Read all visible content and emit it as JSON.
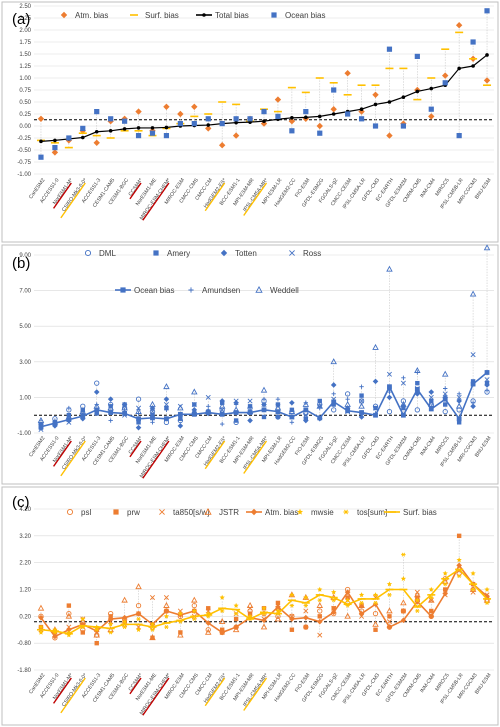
{
  "models": [
    "CanESM2",
    "ACCESS1-0",
    "NorESM1-M*",
    "CSIRO-Mk3-6-0*",
    "ACCESS1-3",
    "CESM1-CAM5",
    "CESM1-BGC",
    "CCSM4*",
    "NorESM1-ME",
    "MIROC-ESM-CHEM*",
    "MIROC-ESM",
    "CMCC-CMS",
    "CMCC-CM",
    "HadGEM2-ES*",
    "BCC-ESM1-1",
    "MPI-ESM-MR",
    "IPSL-CM5A-MR*",
    "MPI-ESM-LR",
    "HadGEM2-CC",
    "FIO-ESM",
    "GFDL-ESM2G",
    "FGOALS-g2",
    "CMCC-CESM",
    "IPSL-CM5A-LR",
    "GFDL-CM3",
    "EC-EARTH",
    "GFDL-ESM2M",
    "CNRM-CM5",
    "INM-CM4",
    "MIROC5",
    "IPSL-CM5B-LR",
    "MRI-CGCM3",
    "BNU-ESM"
  ],
  "highlight": {
    "red": [
      2,
      7,
      9
    ],
    "yellow": [
      3,
      13,
      16
    ],
    "red_color": "#c00000",
    "yellow_color": "#ffc000"
  },
  "chart_data": [
    {
      "panel": "(a)",
      "type": "line",
      "ylim": [
        -1.0,
        2.5
      ],
      "yticks": [
        -1.0,
        -0.75,
        -0.5,
        -0.25,
        0.0,
        0.25,
        0.5,
        0.75,
        1.0,
        1.25,
        1.5,
        1.75,
        2.0,
        2.25,
        2.5
      ],
      "ytick_labels": [
        "-1.00",
        "-0.75",
        "-0.50",
        "-0.25",
        "0.00",
        "0.25",
        "0.50",
        "0.75",
        "1.00",
        "1.25",
        "1.50",
        "1.75",
        "2.00",
        "2.25",
        "2.50"
      ],
      "ref_line": 0.13,
      "legend": [
        "Atm. bias",
        "Surf. bias",
        "Total bias",
        "Ocean bias"
      ],
      "series": [
        {
          "name": "Atm. bias",
          "marker": "diamond",
          "color": "#ed7d31",
          "values": [
            0.15,
            -0.55,
            -0.3,
            -0.1,
            -0.35,
            0.1,
            0.15,
            0.3,
            -0.1,
            0.4,
            0.25,
            0.4,
            -0.05,
            -0.4,
            -0.2,
            0.15,
            0.05,
            0.55,
            0.1,
            0.15,
            0.0,
            0.35,
            1.1,
            0.3,
            0.65,
            -0.2,
            0.05,
            0.75,
            0.2,
            1.05,
            2.1,
            1.4,
            0.95
          ]
        },
        {
          "name": "Surf. bias",
          "marker": "dash",
          "color": "#ffc000",
          "values": [
            -0.3,
            -0.35,
            -0.45,
            -0.15,
            -0.2,
            -0.25,
            -0.1,
            -0.1,
            -0.2,
            -0.05,
            0.05,
            0.2,
            0.25,
            0.5,
            0.45,
            0.1,
            0.35,
            0.3,
            0.8,
            0.7,
            1.0,
            0.9,
            0.65,
            0.85,
            0.85,
            1.2,
            1.2,
            0.55,
            1.0,
            1.6,
            1.95,
            1.4,
            0.85
          ]
        },
        {
          "name": "Total bias",
          "marker": "dot",
          "color": "#000000",
          "values": [
            -0.32,
            -0.3,
            -0.27,
            -0.24,
            -0.12,
            -0.1,
            -0.06,
            -0.04,
            -0.04,
            -0.03,
            0.0,
            0.01,
            0.02,
            0.05,
            0.07,
            0.08,
            0.1,
            0.14,
            0.17,
            0.18,
            0.2,
            0.25,
            0.3,
            0.35,
            0.45,
            0.5,
            0.6,
            0.72,
            0.78,
            0.85,
            1.2,
            1.25,
            1.48
          ]
        },
        {
          "name": "Ocean bias",
          "marker": "square",
          "color": "#4472c4",
          "values": [
            -0.65,
            -0.45,
            -0.25,
            -0.05,
            0.3,
            0.15,
            0.1,
            -0.2,
            -0.15,
            -0.2,
            0.05,
            0.05,
            0.15,
            0.05,
            0.15,
            0.15,
            0.3,
            0.2,
            -0.1,
            0.3,
            -0.15,
            0.75,
            0.25,
            0.15,
            0.0,
            1.6,
            0.0,
            1.45,
            0.35,
            0.9,
            -0.2,
            1.75,
            2.4
          ]
        }
      ]
    },
    {
      "panel": "(b)",
      "type": "line",
      "ylim": [
        -1.0,
        9.0
      ],
      "yticks": [
        -1.0,
        1.0,
        3.0,
        5.0,
        7.0,
        9.0
      ],
      "ytick_labels": [
        "-1.00",
        "1.00",
        "3.00",
        "5.00",
        "7.00",
        "9.00"
      ],
      "ref_line": 0.0,
      "legend": [
        "DML",
        "Amery",
        "Totten",
        "Ross",
        "Ocean bias",
        "Amundsen",
        "Weddell"
      ],
      "series": [
        {
          "name": "DML",
          "marker": "circle",
          "color": "#4472c4",
          "values": [
            -0.4,
            -0.2,
            0.3,
            0.5,
            1.8,
            0.6,
            0.4,
            0.9,
            0.2,
            -0.4,
            -0.3,
            0.1,
            0.2,
            0.3,
            -0.4,
            0.4,
            0.8,
            -0.1,
            0.2,
            0.1,
            0.6,
            0.3,
            1.2,
            0.8,
            0.5,
            0.2,
            0.8,
            0.3,
            0.6,
            0.2,
            0.3,
            0.8,
            1.3
          ]
        },
        {
          "name": "Amery",
          "marker": "square",
          "color": "#4472c4",
          "values": [
            -0.7,
            -0.5,
            0.0,
            0.3,
            0.1,
            0.5,
            0.6,
            -0.4,
            0.0,
            0.4,
            -0.2,
            0.6,
            0.2,
            0.7,
            -0.3,
            0.5,
            -0.1,
            0.6,
            0.3,
            -0.2,
            0.8,
            0.6,
            0.3,
            1.1,
            0.4,
            1.5,
            0.4,
            1.8,
            0.8,
            0.6,
            -0.4,
            1.9,
            1.8
          ]
        },
        {
          "name": "Totten",
          "marker": "diamond",
          "color": "#4472c4",
          "values": [
            -0.5,
            -0.6,
            -0.3,
            -0.2,
            1.3,
            0.9,
            0.6,
            -0.7,
            0.4,
            0.9,
            -0.6,
            0.3,
            0.1,
            0.8,
            0.7,
            -0.3,
            0.6,
            -0.1,
            0.7,
            -0.3,
            -0.2,
            1.7,
            0.4,
            -0.1,
            1.9,
            1.0,
            0.5,
            1.2,
            1.3,
            1.0,
            0.8,
            0.5,
            1.7
          ]
        },
        {
          "name": "Ross",
          "marker": "cross",
          "color": "#4472c4",
          "values": [
            -0.8,
            -0.5,
            -0.4,
            0.1,
            0.2,
            0.2,
            0.0,
            0.4,
            0.2,
            0.6,
            0.5,
            0.6,
            1.0,
            0.3,
            0.8,
            0.8,
            0.6,
            0.5,
            -0.1,
            0.0,
            0.5,
            0.9,
            0.2,
            0.8,
            0.4,
            2.3,
            1.8,
            1.5,
            1.0,
            1.2,
            1.0,
            3.4,
            2.0
          ]
        },
        {
          "name": "Ocean bias",
          "marker": "square",
          "color": "#4472c4",
          "values": [
            -0.65,
            -0.45,
            -0.25,
            -0.05,
            0.3,
            0.15,
            0.1,
            -0.2,
            -0.15,
            -0.2,
            0.05,
            0.05,
            0.15,
            0.05,
            0.15,
            0.15,
            0.3,
            0.2,
            -0.1,
            0.3,
            -0.15,
            0.75,
            0.25,
            0.15,
            0.0,
            1.6,
            0.0,
            1.45,
            0.35,
            0.9,
            -0.2,
            1.75,
            2.4
          ]
        },
        {
          "name": "Amundsen",
          "marker": "plus",
          "color": "#4472c4",
          "values": [
            -0.6,
            -0.3,
            0.4,
            -0.1,
            0.6,
            -0.3,
            0.3,
            0.1,
            -0.4,
            0.3,
            0.0,
            0.2,
            0.5,
            -0.5,
            0.6,
            0.4,
            0.9,
            0.9,
            -0.4,
            0.7,
            0.4,
            1.2,
            0.9,
            1.6,
            0.1,
            1.3,
            2.1,
            2.4,
            0.5,
            1.5,
            1.2,
            0.7,
            1.4
          ]
        },
        {
          "name": "Weddell",
          "marker": "triangle",
          "color": "#4472c4",
          "values": [
            -0.3,
            -0.4,
            -0.1,
            0.2,
            0.5,
            0.4,
            0.4,
            0.2,
            0.6,
            1.6,
            0.4,
            1.3,
            0.2,
            0.5,
            0.3,
            0.2,
            1.4,
            0.4,
            0.2,
            0.6,
            0.5,
            3.0,
            0.6,
            0.5,
            3.8,
            8.2,
            0.6,
            2.5,
            0.6,
            2.3,
            0.5,
            6.8,
            9.4
          ]
        }
      ]
    },
    {
      "panel": "(c)",
      "type": "line",
      "ylim": [
        -1.8,
        4.2
      ],
      "yticks": [
        -1.8,
        -0.8,
        0.2,
        1.2,
        2.2,
        3.2,
        4.2
      ],
      "ytick_labels": [
        "-1.80",
        "-0.80",
        "0.20",
        "1.20",
        "2.20",
        "3.20",
        "4.20"
      ],
      "ref_line": 0.0,
      "legend": [
        "psl",
        "prw",
        "ta850[s/w]",
        "JSTR",
        "Atm. bias",
        "mwsie",
        "tos[sum]",
        "Surf. bias"
      ],
      "series": [
        {
          "name": "psl",
          "marker": "circle",
          "color": "#ed7d31",
          "values": [
            0.2,
            -0.6,
            0.3,
            -0.3,
            -0.5,
            0.3,
            0.1,
            0.6,
            -0.2,
            0.4,
            0.2,
            0.6,
            -0.3,
            -0.4,
            -0.2,
            0.4,
            0.3,
            0.2,
            0.2,
            -0.2,
            0.4,
            0.3,
            1.2,
            0.4,
            0.3,
            -0.2,
            0.4,
            0.8,
            0.2,
            1.6,
            1.8,
            1.2,
            0.8
          ]
        },
        {
          "name": "prw",
          "marker": "square",
          "color": "#ed7d31",
          "values": [
            -0.2,
            -0.4,
            0.6,
            -0.4,
            -0.8,
            0.2,
            0.0,
            0.3,
            -0.6,
            0.4,
            -0.4,
            0.4,
            0.5,
            -0.3,
            0.1,
            0.3,
            0.5,
            0.7,
            -0.3,
            -0.2,
            0.2,
            0.5,
            0.9,
            0.6,
            -0.3,
            0.2,
            0.4,
            0.9,
            0.4,
            1.2,
            3.2,
            1.4,
            0.9
          ]
        },
        {
          "name": "ta850[s/w]",
          "marker": "x",
          "color": "#ed7d31",
          "values": [
            -0.3,
            -0.5,
            -0.2,
            0.1,
            -0.3,
            0.0,
            -0.1,
            -0.2,
            0.9,
            0.9,
            0.4,
            0.2,
            0.4,
            -0.4,
            0.3,
            0.5,
            0.1,
            0.5,
            0.2,
            0.4,
            -0.5,
            0.5,
            0.8,
            0.2,
            0.9,
            0.0,
            0.4,
            1.1,
            0.8,
            1.0,
            1.9,
            1.1,
            1.0
          ]
        },
        {
          "name": "JSTR",
          "marker": "triangle",
          "color": "#ed7d31",
          "values": [
            0.5,
            -0.3,
            0.2,
            0.0,
            -0.5,
            -0.3,
            0.8,
            1.3,
            -0.6,
            0.6,
            -0.5,
            0.8,
            -0.4,
            0.0,
            -0.3,
            0.6,
            -0.2,
            0.1,
            1.0,
            0.9,
            0.6,
            0.9,
            0.2,
            0.6,
            -0.1,
            0.4,
            0.7,
            1.0,
            0.8,
            1.5,
            2.0,
            1.2,
            0.8
          ]
        },
        {
          "name": "Atm. bias",
          "marker": "diamond",
          "color": "#ed7d31",
          "values": [
            0.15,
            -0.55,
            -0.3,
            -0.1,
            -0.35,
            0.1,
            0.15,
            0.3,
            -0.1,
            0.4,
            0.25,
            0.4,
            -0.05,
            -0.4,
            -0.2,
            0.15,
            0.05,
            0.55,
            0.1,
            0.15,
            0.0,
            0.35,
            1.1,
            0.3,
            0.65,
            -0.2,
            0.05,
            0.75,
            0.2,
            1.05,
            2.1,
            1.4,
            0.95
          ]
        },
        {
          "name": "mwsie",
          "marker": "star",
          "color": "#ffc000",
          "values": [
            -0.4,
            -0.3,
            -0.5,
            0.1,
            -0.2,
            -0.1,
            0.0,
            -0.3,
            -0.1,
            0.2,
            0.3,
            0.4,
            0.3,
            0.9,
            0.6,
            0.2,
            0.5,
            0.4,
            1.0,
            0.9,
            1.2,
            1.1,
            0.8,
            1.0,
            1.0,
            1.4,
            1.6,
            0.8,
            1.2,
            1.8,
            2.3,
            1.8,
            1.2
          ]
        },
        {
          "name": "tos[sum]",
          "marker": "asterisk",
          "color": "#ffc000",
          "values": [
            -0.2,
            -0.4,
            -0.4,
            -0.2,
            -0.3,
            -0.4,
            -0.2,
            0.1,
            -0.3,
            -0.2,
            0.0,
            0.1,
            0.2,
            0.4,
            0.3,
            0.1,
            0.3,
            0.3,
            0.6,
            0.6,
            0.8,
            0.8,
            0.6,
            0.7,
            0.7,
            1.0,
            2.5,
            0.4,
            0.9,
            1.4,
            1.7,
            1.2,
            0.7
          ]
        },
        {
          "name": "Surf. bias",
          "marker": "dash",
          "color": "#ffc000",
          "values": [
            -0.3,
            -0.35,
            -0.45,
            -0.15,
            -0.2,
            -0.25,
            -0.1,
            -0.1,
            -0.2,
            -0.05,
            0.05,
            0.2,
            0.25,
            0.5,
            0.45,
            0.1,
            0.35,
            0.3,
            0.8,
            0.7,
            1.0,
            0.9,
            0.65,
            0.85,
            0.85,
            1.2,
            1.2,
            0.55,
            1.0,
            1.6,
            1.95,
            1.4,
            0.85
          ]
        }
      ]
    }
  ]
}
